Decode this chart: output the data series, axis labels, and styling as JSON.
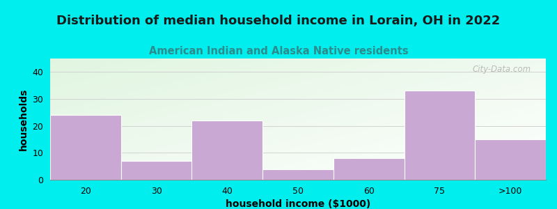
{
  "title": "Distribution of median household income in Lorain, OH in 2022",
  "subtitle": "American Indian and Alaska Native residents",
  "categories": [
    "20",
    "30",
    "40",
    "50",
    "60",
    "75",
    ">100"
  ],
  "values": [
    24,
    7,
    22,
    4,
    8,
    33,
    15
  ],
  "bar_color": "#C9A8D4",
  "background_color": "#00EEEE",
  "plot_bg_color": "#E8F5E8",
  "title_fontsize": 13,
  "subtitle_fontsize": 10.5,
  "subtitle_color": "#2E8B8B",
  "xlabel": "household income ($1000)",
  "ylabel": "households",
  "ylim": [
    0,
    45
  ],
  "yticks": [
    0,
    10,
    20,
    30,
    40
  ],
  "watermark": "City-Data.com"
}
